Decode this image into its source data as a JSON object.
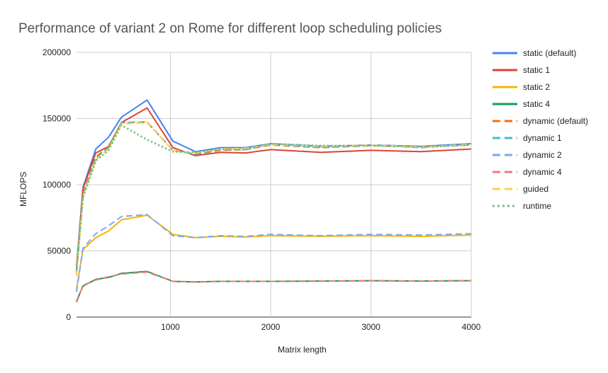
{
  "chart_data": {
    "type": "line",
    "title": "Performance of variant 2 on Rome for different loop scheduling policies",
    "xlabel": "Matrix length",
    "ylabel": "MFLOPS",
    "xlim": [
      64,
      4000
    ],
    "ylim": [
      0,
      200000
    ],
    "x_ticks": [
      1000,
      2000,
      3000,
      4000
    ],
    "y_ticks": [
      0,
      50000,
      100000,
      150000,
      200000
    ],
    "x_tick_labels": [
      "1000",
      "2000",
      "3000",
      "4000"
    ],
    "y_tick_labels": [
      "0",
      "50000",
      "100000",
      "150000",
      "200000"
    ],
    "grid": true,
    "legend_position": "right",
    "x": [
      64,
      128,
      256,
      384,
      512,
      768,
      1024,
      1250,
      1500,
      1750,
      2000,
      2500,
      3000,
      3500,
      4000
    ],
    "series": [
      {
        "name": "static (default)",
        "color": "#4285f4",
        "dash": "solid",
        "values": [
          38000,
          98000,
          127000,
          136000,
          151000,
          164000,
          133000,
          125000,
          128000,
          128000,
          131000,
          129000,
          130000,
          129000,
          131000
        ]
      },
      {
        "name": "static 1",
        "color": "#db4437",
        "dash": "solid",
        "values": [
          36000,
          97000,
          124000,
          129000,
          147000,
          158000,
          128000,
          122000,
          124500,
          124000,
          126500,
          124500,
          126000,
          125000,
          127000
        ]
      },
      {
        "name": "static 2",
        "color": "#f4b400",
        "dash": "solid",
        "values": [
          21000,
          51000,
          60000,
          65000,
          73500,
          77000,
          62500,
          60000,
          61000,
          60500,
          61500,
          61000,
          61500,
          61000,
          62000
        ]
      },
      {
        "name": "static 4",
        "color": "#0f9d58",
        "dash": "solid",
        "values": [
          12000,
          23500,
          28500,
          30000,
          33000,
          34500,
          27000,
          26500,
          27000,
          27000,
          27000,
          27200,
          27500,
          27200,
          27500
        ]
      },
      {
        "name": "dynamic (default)",
        "color": "#ff6d00",
        "dash": "dashed",
        "values": [
          34000,
          93000,
          121000,
          129000,
          147000,
          147500,
          126000,
          123000,
          126000,
          126500,
          130000,
          128000,
          129500,
          128500,
          130000
        ]
      },
      {
        "name": "dynamic 1",
        "color": "#46bdc6",
        "dash": "dashed",
        "values": [
          33000,
          92000,
          120000,
          128000,
          147000,
          147000,
          126000,
          123000,
          127000,
          126500,
          130500,
          128000,
          130000,
          128000,
          130500
        ]
      },
      {
        "name": "dynamic 2",
        "color": "#7baaf7",
        "dash": "dashed",
        "values": [
          19000,
          52000,
          63000,
          69000,
          76000,
          77500,
          61500,
          60000,
          61500,
          61000,
          62500,
          61500,
          62500,
          62000,
          63000
        ]
      },
      {
        "name": "dynamic 4",
        "color": "#f07b72",
        "dash": "dashed",
        "values": [
          11000,
          24000,
          28000,
          30500,
          32500,
          34000,
          27000,
          26500,
          27000,
          27000,
          27000,
          27200,
          27500,
          27200,
          27500
        ]
      },
      {
        "name": "guided",
        "color": "#fcd04f",
        "dash": "dashed",
        "values": [
          31000,
          91000,
          119000,
          127000,
          146000,
          147000,
          126000,
          124000,
          127000,
          127500,
          130500,
          129000,
          130000,
          128500,
          130500
        ]
      },
      {
        "name": "runtime",
        "color": "#71c287",
        "dash": "dotted",
        "values": [
          35000,
          90000,
          118000,
          126000,
          145000,
          134000,
          125000,
          124500,
          126500,
          126500,
          131000,
          129500,
          129500,
          128500,
          130000
        ]
      }
    ]
  }
}
